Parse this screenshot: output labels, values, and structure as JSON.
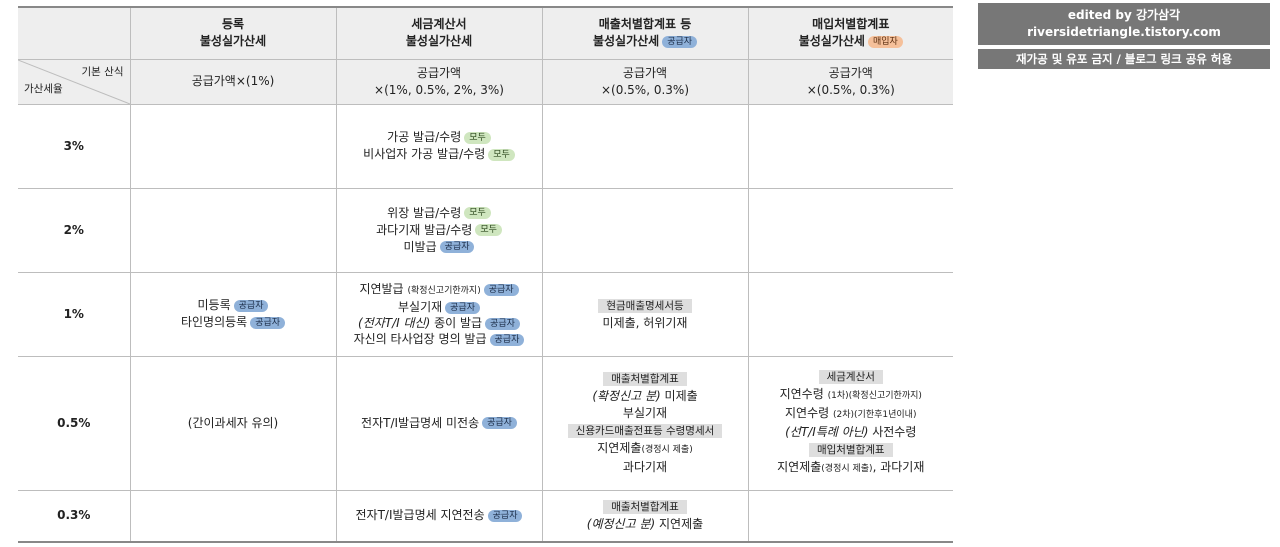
{
  "header": {
    "col1": [
      "등록",
      "불성실가산세"
    ],
    "col2": [
      "세금계산서",
      "불성실가산세"
    ],
    "col3": [
      "매출처별합계표 등",
      "불성실가산세"
    ],
    "col3_badge": "공급자",
    "col4": [
      "매입처별합계표",
      "불성실가산세"
    ],
    "col4_badge": "매입자"
  },
  "formula_row": {
    "corner_top": "기본 산식",
    "corner_bottom": "가산세율",
    "col1": "공급가액×(1%)",
    "col2": [
      "공급가액",
      "×(1%, 0.5%, 2%, 3%)"
    ],
    "col3": [
      "공급가액",
      "×(0.5%, 0.3%)"
    ],
    "col4": [
      "공급가액",
      "×(0.5%, 0.3%)"
    ]
  },
  "rows": {
    "r3": {
      "rate": "3%",
      "col2": [
        {
          "text": "가공 발급/수령",
          "badge": "모두"
        },
        {
          "text": "비사업자 가공 발급/수령",
          "badge": "모두"
        }
      ]
    },
    "r2": {
      "rate": "2%",
      "col2": [
        {
          "text": "위장 발급/수령",
          "badge": "모두"
        },
        {
          "text": "과다기재 발급/수령",
          "badge": "모두"
        },
        {
          "text": "미발급",
          "badge": "공급자"
        }
      ]
    },
    "r1": {
      "rate": "1%",
      "col1": [
        {
          "text": "미등록",
          "badge": "공급자"
        },
        {
          "text": "타인명의등록",
          "badge": "공급자"
        }
      ],
      "col2": {
        "line1_main": "지연발급",
        "line1_small": "(확정신고기한까지)",
        "line1_badge": "공급자",
        "line2": "부실기재",
        "line2_badge": "공급자",
        "line3_italic": "(전자T/I 대신)",
        "line3_rest": "종이 발급",
        "line3_badge": "공급자",
        "line4": "자신의 타사업장 명의 발급",
        "line4_badge": "공급자"
      },
      "col3": {
        "tag": "현금매출명세서등",
        "text": "미제출, 허위기재"
      }
    },
    "r05": {
      "rate": "0.5%",
      "col1": "(간이과세자 유의)",
      "col2": {
        "text": "전자T/I발급명세 미전송",
        "badge": "공급자"
      },
      "col3": {
        "tag1": "매출처별합계표",
        "line1_italic": "(확정신고 분)",
        "line1_rest": "미제출",
        "line2": "부실기재",
        "tag2": "신용카드매출전표등 수령명세서",
        "line3_main": "지연제출",
        "line3_small": "(경정시 제출)",
        "line4": "과다기재"
      },
      "col4": {
        "tag1": "세금계산서",
        "line1_main": "지연수령",
        "line1_small": "(1차)(확정신고기한까지)",
        "line2_main": "지연수령",
        "line2_small": "(2차)(기한후1년이내)",
        "line3_italic": "(선T/I특례 아닌)",
        "line3_rest": "사전수령",
        "tag2": "매입처별합계표",
        "line4_main": "지연제출",
        "line4_small": "(경정시 제출)",
        "line4_rest": ", 과다기재"
      }
    },
    "r03": {
      "rate": "0.3%",
      "col2": {
        "text": "전자T/I발급명세 지연전송",
        "badge": "공급자"
      },
      "col3": {
        "tag": "매출처별합계표",
        "line_italic": "(예정신고 분)",
        "line_rest": "지연제출"
      }
    }
  },
  "side": {
    "edited_by_prefix": "edited by ",
    "edited_by_name": "강가삼각",
    "blog_url": "riversidetriangle.tistory.com",
    "notice": "재가공 및 유포 금지 / 블로그 링크 공유 허용"
  },
  "colors": {
    "badge_supplier": "#8fb1d9",
    "badge_both": "#cfe6bf",
    "badge_buyer": "#f5c09a",
    "header_bg": "#eeeeee",
    "side_box_bg": "#777777"
  }
}
